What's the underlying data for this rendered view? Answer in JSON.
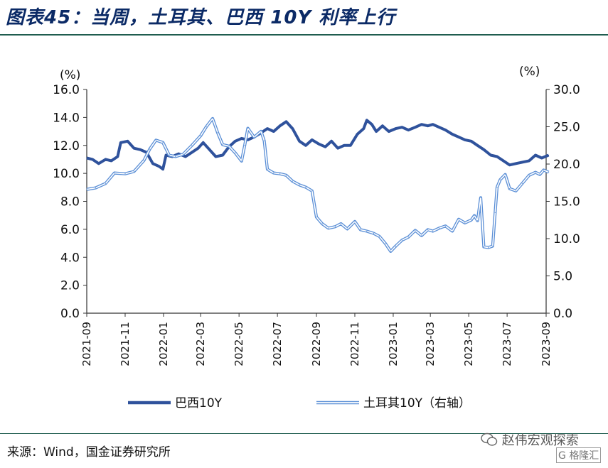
{
  "title": "图表45：当周，土耳其、巴西 10Y 利率上行",
  "source": "来源：Wind，国金证券研究所",
  "watermark": "赵伟宏观探索",
  "logo": "格隆汇",
  "colors": {
    "brazil": "#2f529c",
    "turkey_outline": "#5b8fd6",
    "turkey_fill": "#ffffff",
    "rule": "#1f5d4f",
    "title": "#0b2a66"
  },
  "chart_data": {
    "type": "line",
    "x_ticks": [
      "2021-09",
      "2021-11",
      "2022-01",
      "2022-03",
      "2022-05",
      "2022-07",
      "2022-09",
      "2022-11",
      "2023-01",
      "2023-03",
      "2023-05",
      "2023-07",
      "2023-09"
    ],
    "x_range": [
      "2021-09",
      "2023-09"
    ],
    "y_left": {
      "unit": "(%)",
      "ylim": [
        0,
        16
      ],
      "ticks": [
        "0.0",
        "2.0",
        "4.0",
        "6.0",
        "8.0",
        "10.0",
        "12.0",
        "14.0",
        "16.0"
      ]
    },
    "y_right": {
      "unit": "(%)",
      "ylim": [
        0,
        30
      ],
      "ticks": [
        "0.0",
        "5.0",
        "10.0",
        "15.0",
        "20.0",
        "25.0",
        "30.0"
      ]
    },
    "legend_position": "bottom",
    "grid": false,
    "series": [
      {
        "name": "巴西10Y",
        "axis": "left",
        "style": "solid-thick",
        "points": [
          [
            "2021-09-01",
            11.1
          ],
          [
            "2021-09-10",
            11.0
          ],
          [
            "2021-09-20",
            10.7
          ],
          [
            "2021-10-01",
            11.0
          ],
          [
            "2021-10-10",
            10.9
          ],
          [
            "2021-10-20",
            11.2
          ],
          [
            "2021-10-25",
            12.2
          ],
          [
            "2021-11-05",
            12.3
          ],
          [
            "2021-11-15",
            11.8
          ],
          [
            "2021-11-25",
            11.7
          ],
          [
            "2021-12-05",
            11.5
          ],
          [
            "2021-12-15",
            10.7
          ],
          [
            "2021-12-25",
            10.5
          ],
          [
            "2021-12-31",
            10.3
          ],
          [
            "2022-01-05",
            11.3
          ],
          [
            "2022-01-15",
            11.2
          ],
          [
            "2022-01-25",
            11.4
          ],
          [
            "2022-02-05",
            11.2
          ],
          [
            "2022-02-15",
            11.5
          ],
          [
            "2022-02-25",
            11.8
          ],
          [
            "2022-03-05",
            12.2
          ],
          [
            "2022-03-15",
            11.7
          ],
          [
            "2022-03-25",
            11.2
          ],
          [
            "2022-04-05",
            11.3
          ],
          [
            "2022-04-15",
            11.9
          ],
          [
            "2022-04-25",
            12.3
          ],
          [
            "2022-05-05",
            12.5
          ],
          [
            "2022-05-15",
            12.4
          ],
          [
            "2022-05-25",
            12.6
          ],
          [
            "2022-06-05",
            12.9
          ],
          [
            "2022-06-15",
            13.2
          ],
          [
            "2022-06-25",
            13.0
          ],
          [
            "2022-07-05",
            13.4
          ],
          [
            "2022-07-15",
            13.7
          ],
          [
            "2022-07-25",
            13.2
          ],
          [
            "2022-08-05",
            12.3
          ],
          [
            "2022-08-15",
            12.0
          ],
          [
            "2022-08-25",
            12.4
          ],
          [
            "2022-09-05",
            12.1
          ],
          [
            "2022-09-15",
            11.9
          ],
          [
            "2022-09-25",
            12.3
          ],
          [
            "2022-10-05",
            11.8
          ],
          [
            "2022-10-15",
            12.0
          ],
          [
            "2022-10-25",
            12.0
          ],
          [
            "2022-11-05",
            12.8
          ],
          [
            "2022-11-15",
            13.2
          ],
          [
            "2022-11-20",
            13.8
          ],
          [
            "2022-11-28",
            13.5
          ],
          [
            "2022-12-05",
            13.0
          ],
          [
            "2022-12-15",
            13.4
          ],
          [
            "2022-12-25",
            13.0
          ],
          [
            "2023-01-05",
            13.2
          ],
          [
            "2023-01-15",
            13.3
          ],
          [
            "2023-01-25",
            13.1
          ],
          [
            "2023-02-05",
            13.3
          ],
          [
            "2023-02-15",
            13.5
          ],
          [
            "2023-02-25",
            13.4
          ],
          [
            "2023-03-05",
            13.5
          ],
          [
            "2023-03-15",
            13.3
          ],
          [
            "2023-03-25",
            13.1
          ],
          [
            "2023-04-05",
            12.8
          ],
          [
            "2023-04-15",
            12.6
          ],
          [
            "2023-04-25",
            12.4
          ],
          [
            "2023-05-05",
            12.3
          ],
          [
            "2023-05-15",
            12.0
          ],
          [
            "2023-05-25",
            11.7
          ],
          [
            "2023-06-05",
            11.3
          ],
          [
            "2023-06-15",
            11.2
          ],
          [
            "2023-06-25",
            10.9
          ],
          [
            "2023-07-05",
            10.6
          ],
          [
            "2023-07-15",
            10.7
          ],
          [
            "2023-07-25",
            10.8
          ],
          [
            "2023-08-05",
            10.9
          ],
          [
            "2023-08-15",
            11.3
          ],
          [
            "2023-08-25",
            11.1
          ],
          [
            "2023-09-05",
            11.3
          ]
        ]
      },
      {
        "name": "土耳其10Y（右轴）",
        "axis": "right",
        "style": "double-outline",
        "points": [
          [
            "2021-09-01",
            16.6
          ],
          [
            "2021-09-15",
            16.8
          ],
          [
            "2021-10-01",
            17.4
          ],
          [
            "2021-10-15",
            18.8
          ],
          [
            "2021-11-01",
            18.7
          ],
          [
            "2021-11-15",
            19.0
          ],
          [
            "2021-12-01",
            20.5
          ],
          [
            "2021-12-10",
            22.0
          ],
          [
            "2021-12-20",
            23.2
          ],
          [
            "2021-12-31",
            22.9
          ],
          [
            "2022-01-10",
            21.2
          ],
          [
            "2022-01-20",
            21.0
          ],
          [
            "2022-02-01",
            21.3
          ],
          [
            "2022-02-15",
            22.5
          ],
          [
            "2022-03-01",
            23.8
          ],
          [
            "2022-03-10",
            25.0
          ],
          [
            "2022-03-20",
            26.1
          ],
          [
            "2022-03-28",
            24.2
          ],
          [
            "2022-04-05",
            22.6
          ],
          [
            "2022-04-15",
            22.4
          ],
          [
            "2022-04-25",
            21.5
          ],
          [
            "2022-05-05",
            20.4
          ],
          [
            "2022-05-10",
            22.5
          ],
          [
            "2022-05-15",
            24.8
          ],
          [
            "2022-05-25",
            23.6
          ],
          [
            "2022-06-05",
            24.4
          ],
          [
            "2022-06-10",
            23.1
          ],
          [
            "2022-06-15",
            19.3
          ],
          [
            "2022-06-25",
            18.8
          ],
          [
            "2022-07-05",
            18.7
          ],
          [
            "2022-07-15",
            18.5
          ],
          [
            "2022-07-25",
            17.7
          ],
          [
            "2022-08-05",
            17.2
          ],
          [
            "2022-08-15",
            16.9
          ],
          [
            "2022-08-25",
            16.4
          ],
          [
            "2022-09-01",
            12.9
          ],
          [
            "2022-09-10",
            12.0
          ],
          [
            "2022-09-20",
            11.4
          ],
          [
            "2022-10-01",
            11.6
          ],
          [
            "2022-10-10",
            12.0
          ],
          [
            "2022-10-20",
            11.3
          ],
          [
            "2022-11-01",
            12.3
          ],
          [
            "2022-11-10",
            11.2
          ],
          [
            "2022-11-20",
            11.0
          ],
          [
            "2022-12-01",
            10.7
          ],
          [
            "2022-12-10",
            10.3
          ],
          [
            "2022-12-20",
            9.3
          ],
          [
            "2022-12-28",
            8.3
          ],
          [
            "2023-01-05",
            9.0
          ],
          [
            "2023-01-15",
            9.8
          ],
          [
            "2023-01-25",
            10.2
          ],
          [
            "2023-02-05",
            11.1
          ],
          [
            "2023-02-15",
            10.4
          ],
          [
            "2023-02-25",
            11.2
          ],
          [
            "2023-03-05",
            11.0
          ],
          [
            "2023-03-15",
            11.4
          ],
          [
            "2023-03-25",
            11.7
          ],
          [
            "2023-04-05",
            11.0
          ],
          [
            "2023-04-15",
            12.6
          ],
          [
            "2023-04-25",
            12.1
          ],
          [
            "2023-05-05",
            12.5
          ],
          [
            "2023-05-10",
            13.1
          ],
          [
            "2023-05-15",
            12.4
          ],
          [
            "2023-05-20",
            15.5
          ],
          [
            "2023-05-25",
            8.9
          ],
          [
            "2023-06-01",
            8.8
          ],
          [
            "2023-06-08",
            9.0
          ],
          [
            "2023-06-12",
            13.5
          ],
          [
            "2023-06-15",
            16.9
          ],
          [
            "2023-06-20",
            17.9
          ],
          [
            "2023-06-28",
            18.6
          ],
          [
            "2023-07-05",
            16.7
          ],
          [
            "2023-07-15",
            16.4
          ],
          [
            "2023-07-25",
            17.4
          ],
          [
            "2023-08-05",
            18.5
          ],
          [
            "2023-08-15",
            18.9
          ],
          [
            "2023-08-22",
            18.6
          ],
          [
            "2023-08-28",
            19.2
          ],
          [
            "2023-09-05",
            18.9
          ]
        ]
      }
    ]
  }
}
